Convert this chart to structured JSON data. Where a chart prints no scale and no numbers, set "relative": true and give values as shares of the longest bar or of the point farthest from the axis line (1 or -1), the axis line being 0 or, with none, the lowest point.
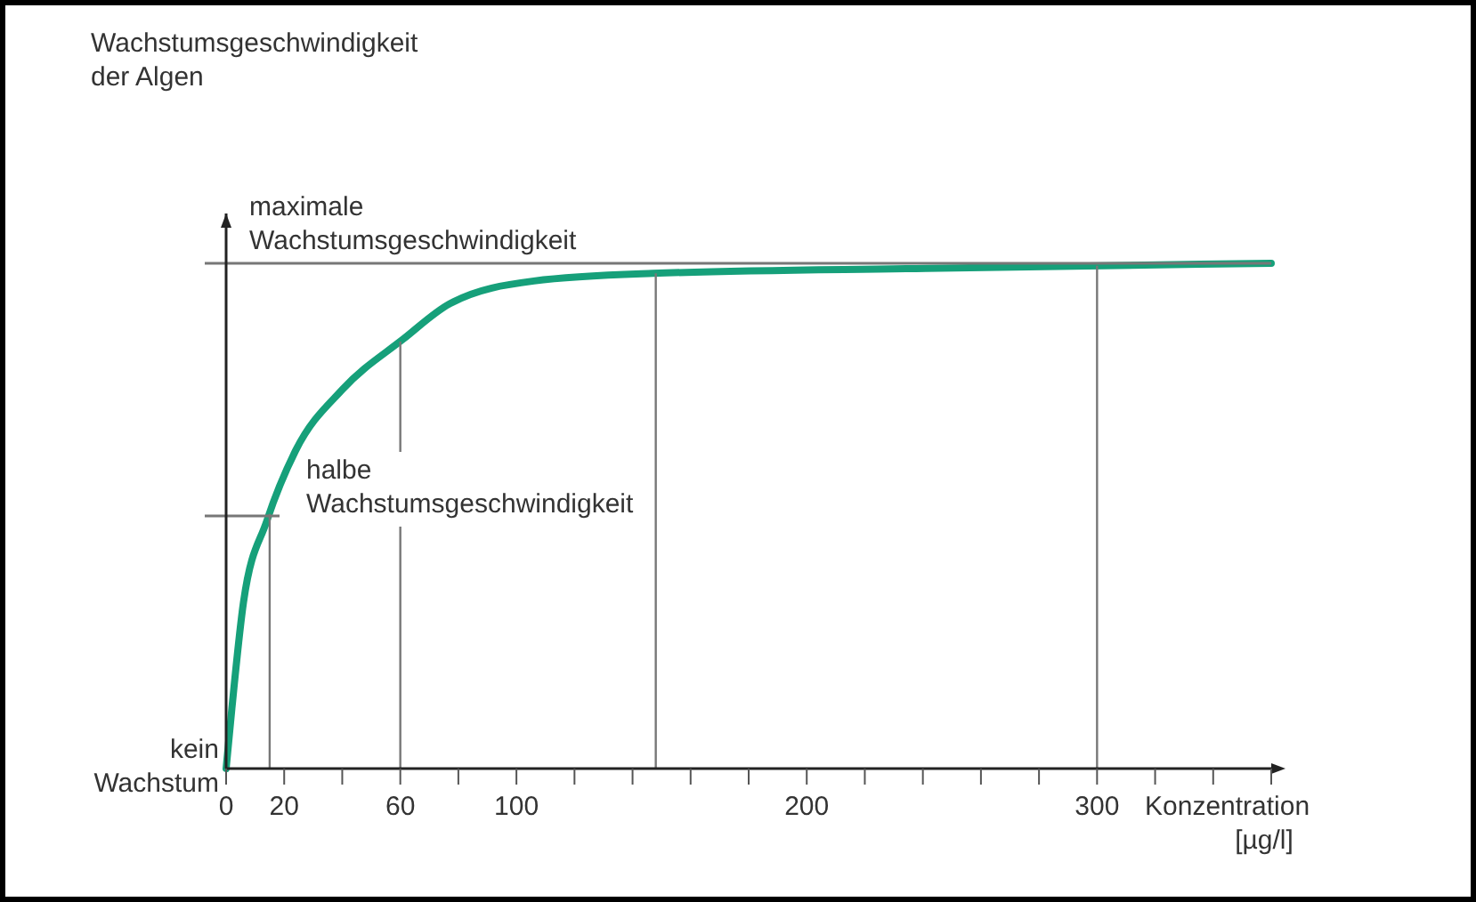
{
  "chart_data": {
    "type": "line",
    "relative": true,
    "xlabel": "Konzentration [µg/l]",
    "xlim": [
      0,
      360
    ],
    "xticks": [
      0,
      20,
      {
        "value": 40,
        "label": null
      },
      60,
      {
        "value": 80,
        "label": null
      },
      100,
      {
        "value": 120,
        "label": null
      },
      {
        "value": 140,
        "label": null
      },
      {
        "value": 160,
        "label": null
      },
      {
        "value": 180,
        "label": null
      },
      200,
      {
        "value": 220,
        "label": null
      },
      {
        "value": 240,
        "label": null
      },
      {
        "value": 260,
        "label": null
      },
      {
        "value": 280,
        "label": null
      },
      300,
      {
        "value": 320,
        "label": null
      },
      {
        "value": 340,
        "label": null
      },
      {
        "value": 360,
        "label": null
      }
    ],
    "series": [
      {
        "color": "#16a07a",
        "x": [
          0,
          2,
          6,
          14,
          24,
          40,
          61,
          77,
          106,
          147,
          241,
          360
        ],
        "values": [
          0,
          0.12,
          0.33,
          0.49,
          0.63,
          0.75,
          0.85,
          0.92,
          0.965,
          0.98,
          0.99,
          1
        ]
      }
    ],
    "ref_lines": [
      {
        "axis": "y",
        "value": 1,
        "label": "maximale Wachstumsgeschwindigkeit"
      },
      {
        "axis": "y",
        "value": 0.5,
        "label": "halbe Wachstumsgeschwindigkeit"
      },
      {
        "axis": "x",
        "value": 15
      },
      {
        "axis": "x",
        "value": 60
      },
      {
        "axis": "x",
        "value": 148
      },
      {
        "axis": "x",
        "value": 300
      }
    ],
    "annotations": [
      "Wachstumsgeschwindigkeit der Algen",
      {
        "text": "kein Wachstum",
        "x": 0,
        "y": 0
      }
    ],
    "grid": false,
    "marker": "none",
    "line_style": "solid"
  }
}
